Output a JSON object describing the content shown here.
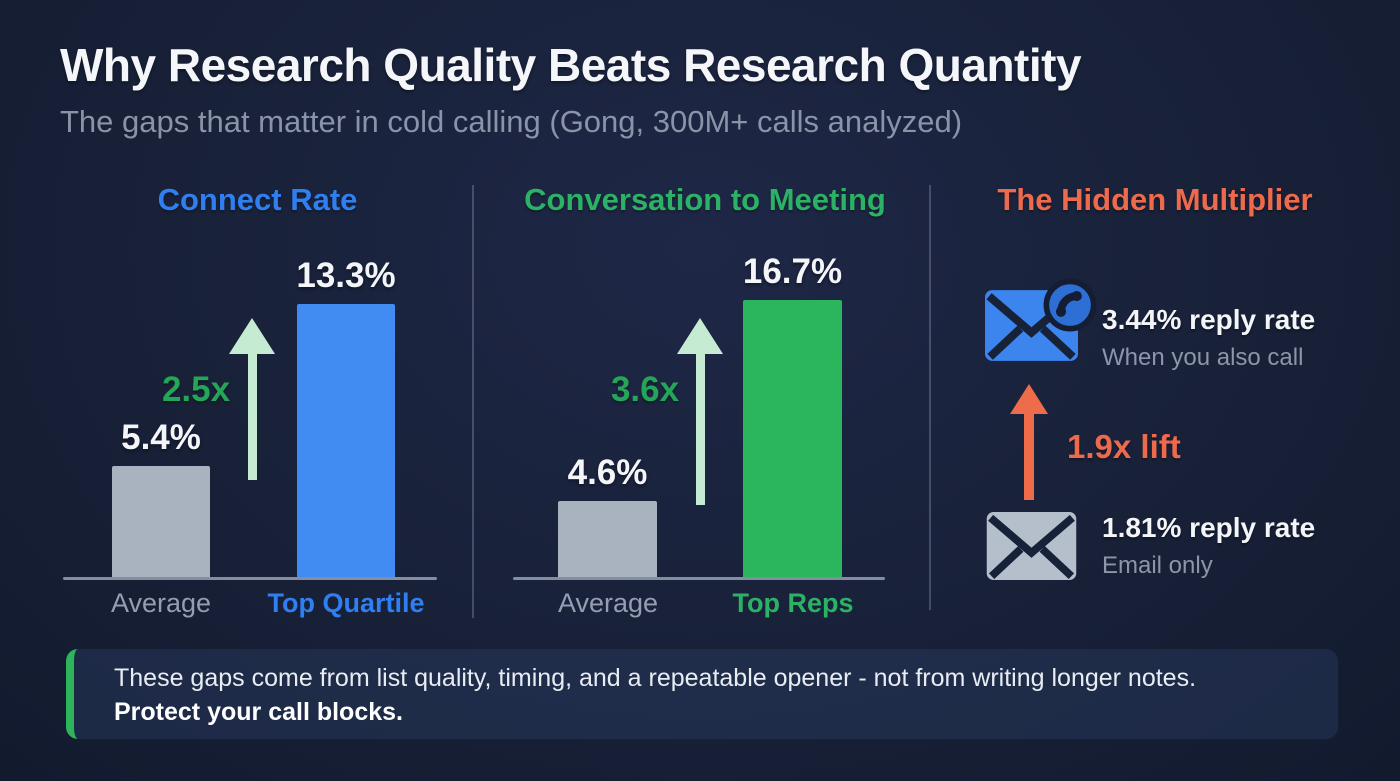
{
  "header": {
    "title": "Why Research Quality Beats Research Quantity",
    "subtitle": "The gaps that matter in cold calling (Gong, 300M+ calls analyzed)"
  },
  "chart_data": [
    {
      "type": "bar",
      "title": "Connect Rate",
      "title_color": "#2f7ff0",
      "categories": [
        "Average",
        "Top Quartile"
      ],
      "values": [
        5.4,
        13.3
      ],
      "value_labels": [
        "5.4%",
        "13.3%"
      ],
      "unit": "%",
      "bar_colors": [
        "#a9b2bf",
        "#418cf2"
      ],
      "highlight_label_color": "#2f7ff0",
      "multiplier": "2.5x",
      "multiplier_color": "#25a558",
      "legend_position": "none",
      "grid": false
    },
    {
      "type": "bar",
      "title": "Conversation to Meeting",
      "title_color": "#2bb264",
      "categories": [
        "Average",
        "Top Reps"
      ],
      "values": [
        4.6,
        16.7
      ],
      "value_labels": [
        "4.6%",
        "16.7%"
      ],
      "unit": "%",
      "bar_colors": [
        "#a9b2bf",
        "#2bb55c"
      ],
      "highlight_label_color": "#2bb264",
      "multiplier": "3.6x",
      "multiplier_color": "#25a558",
      "legend_position": "none",
      "grid": false
    },
    {
      "type": "icon-comparison",
      "title": "The Hidden Multiplier",
      "title_color": "#ee6a4c",
      "top": {
        "icon": "email-plus-call",
        "value": "3.44% reply rate",
        "caption": "When you also call"
      },
      "lift": "1.9x lift",
      "lift_color": "#ee6a4c",
      "bottom": {
        "icon": "email-only",
        "value": "1.81% reply rate",
        "caption": "Email only"
      }
    }
  ],
  "callout": {
    "line1": "These gaps come from list quality, timing, and a repeatable opener - not from writing longer notes.",
    "line2": "Protect your call blocks.",
    "accent_color": "#2eb55b"
  },
  "colors": {
    "background": "#182138",
    "divider": "rgba(160,175,200,0.32)",
    "axis_line": "#97a2b4",
    "value_text": "#f3f5f8",
    "muted_text": "#8d96a8",
    "arrow_mint": "#c5ecd2",
    "arrow_orange": "#ef6c4b"
  }
}
